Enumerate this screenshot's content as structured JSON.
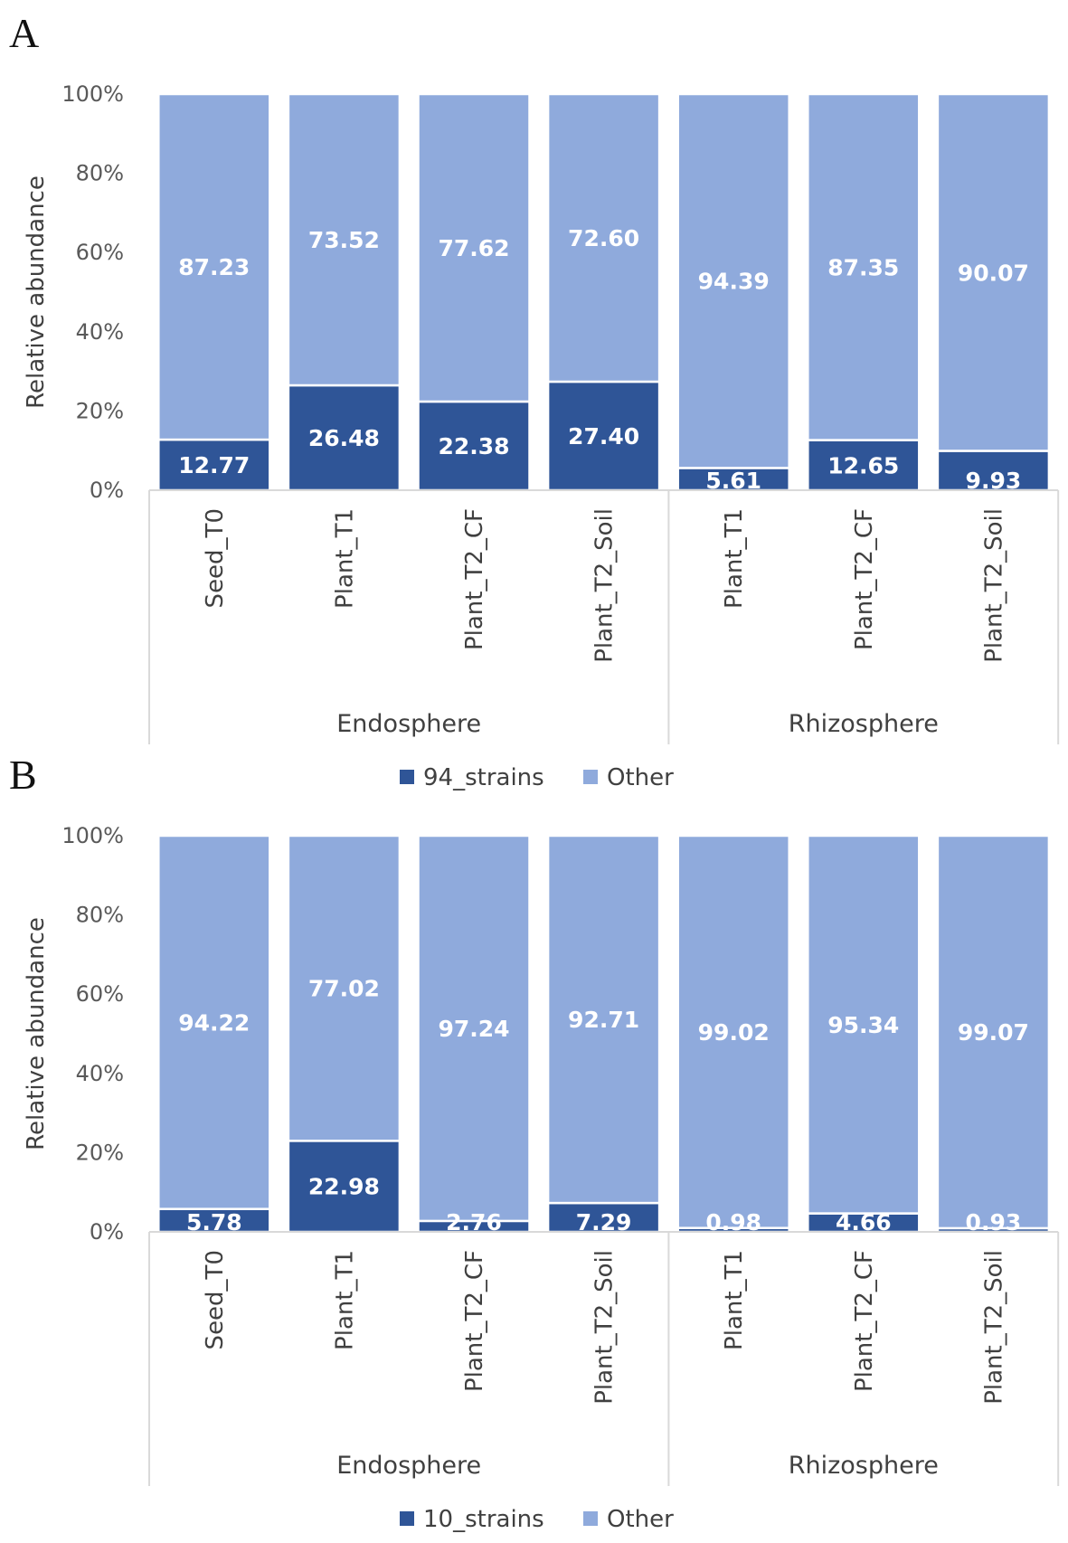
{
  "chart_data": [
    {
      "panel_label": "A",
      "type": "bar",
      "stacked": true,
      "ylabel": "Relative abundance",
      "ylim": [
        0,
        100
      ],
      "yticks": [
        "0%",
        "20%",
        "40%",
        "60%",
        "80%",
        "100%"
      ],
      "categories": [
        "Seed_T0",
        "Plant_T1",
        "Plant_T2_CF",
        "Plant_T2_Soil",
        "Plant_T1",
        "Plant_T2_CF",
        "Plant_T2_Soil"
      ],
      "groups": [
        {
          "name": "Endosphere",
          "count": 4
        },
        {
          "name": "Rhizosphere",
          "count": 3
        }
      ],
      "series": [
        {
          "name": "94_strains",
          "color": "#2F5597",
          "values": [
            12.77,
            26.48,
            22.38,
            27.4,
            5.61,
            12.65,
            9.93
          ],
          "labels": [
            "12.77",
            "26.48",
            "22.38",
            "27.40",
            "5.61",
            "12.65",
            "9.93"
          ]
        },
        {
          "name": "Other",
          "color": "#8FAADC",
          "values": [
            87.23,
            73.52,
            77.62,
            72.6,
            94.39,
            87.35,
            90.07
          ],
          "labels": [
            "87.23",
            "73.52",
            "77.62",
            "72.60",
            "94.39",
            "87.35",
            "90.07"
          ]
        }
      ],
      "legend": [
        "94_strains",
        "Other"
      ],
      "legend_position": "bottom"
    },
    {
      "panel_label": "B",
      "type": "bar",
      "stacked": true,
      "ylabel": "Relative abundance",
      "ylim": [
        0,
        100
      ],
      "yticks": [
        "0%",
        "20%",
        "40%",
        "60%",
        "80%",
        "100%"
      ],
      "categories": [
        "Seed_T0",
        "Plant_T1",
        "Plant_T2_CF",
        "Plant_T2_Soil",
        "Plant_T1",
        "Plant_T2_CF",
        "Plant_T2_Soil"
      ],
      "groups": [
        {
          "name": "Endosphere",
          "count": 4
        },
        {
          "name": "Rhizosphere",
          "count": 3
        }
      ],
      "series": [
        {
          "name": "10_strains",
          "color": "#2F5597",
          "values": [
            5.78,
            22.98,
            2.76,
            7.29,
            0.98,
            4.66,
            0.93
          ],
          "labels": [
            "5.78",
            "22.98",
            "2.76",
            "7.29",
            "0.98",
            "4.66",
            "0.93"
          ]
        },
        {
          "name": "Other",
          "color": "#8FAADC",
          "values": [
            94.22,
            77.02,
            97.24,
            92.71,
            99.02,
            95.34,
            99.07
          ],
          "labels": [
            "94.22",
            "77.02",
            "97.24",
            "92.71",
            "99.02",
            "95.34",
            "99.07"
          ]
        }
      ],
      "legend": [
        "10_strains",
        "Other"
      ],
      "legend_position": "bottom"
    }
  ]
}
